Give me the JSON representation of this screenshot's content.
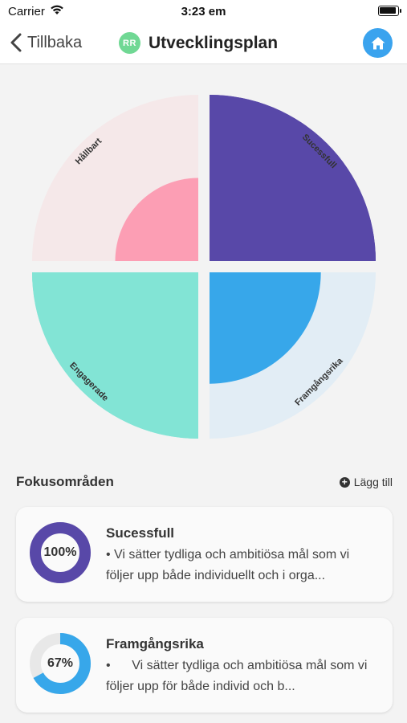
{
  "status_bar": {
    "carrier": "Carrier",
    "time": "3:23 em"
  },
  "nav": {
    "back_label": "Tillbaka",
    "avatar_initials": "RR",
    "title": "Utvecklingsplan",
    "home_icon": "home-icon"
  },
  "chart_data": {
    "type": "polar-area",
    "segments": [
      {
        "name": "Sucessfull",
        "fraction": 1.0,
        "color": "#5848a8",
        "track": "#5848a8"
      },
      {
        "name": "Framgångsrika",
        "fraction": 0.67,
        "color": "#37a7ea",
        "track": "#e2edf5"
      },
      {
        "name": "Engagerade",
        "fraction": 1.0,
        "color": "#82e4d5",
        "track": "#82e4d5"
      },
      {
        "name": "Hållbart",
        "fraction": 0.5,
        "color": "#fc9eb4",
        "track": "#f5e8e9"
      }
    ]
  },
  "focus": {
    "title": "Fokusområden",
    "add_label": "Lägg till",
    "items": [
      {
        "name": "Sucessfull",
        "percent_label": "100%",
        "fraction": 1.0,
        "color": "#5848a8",
        "description": "• Vi sätter tydliga och ambitiösa mål som vi följer upp både individuellt och i orga..."
      },
      {
        "name": "Framgångsrika",
        "percent_label": "67%",
        "fraction": 0.67,
        "color": "#37a7ea",
        "description": "•      Vi sätter tydliga och ambitiösa mål som vi följer upp för både individ och b..."
      }
    ]
  }
}
